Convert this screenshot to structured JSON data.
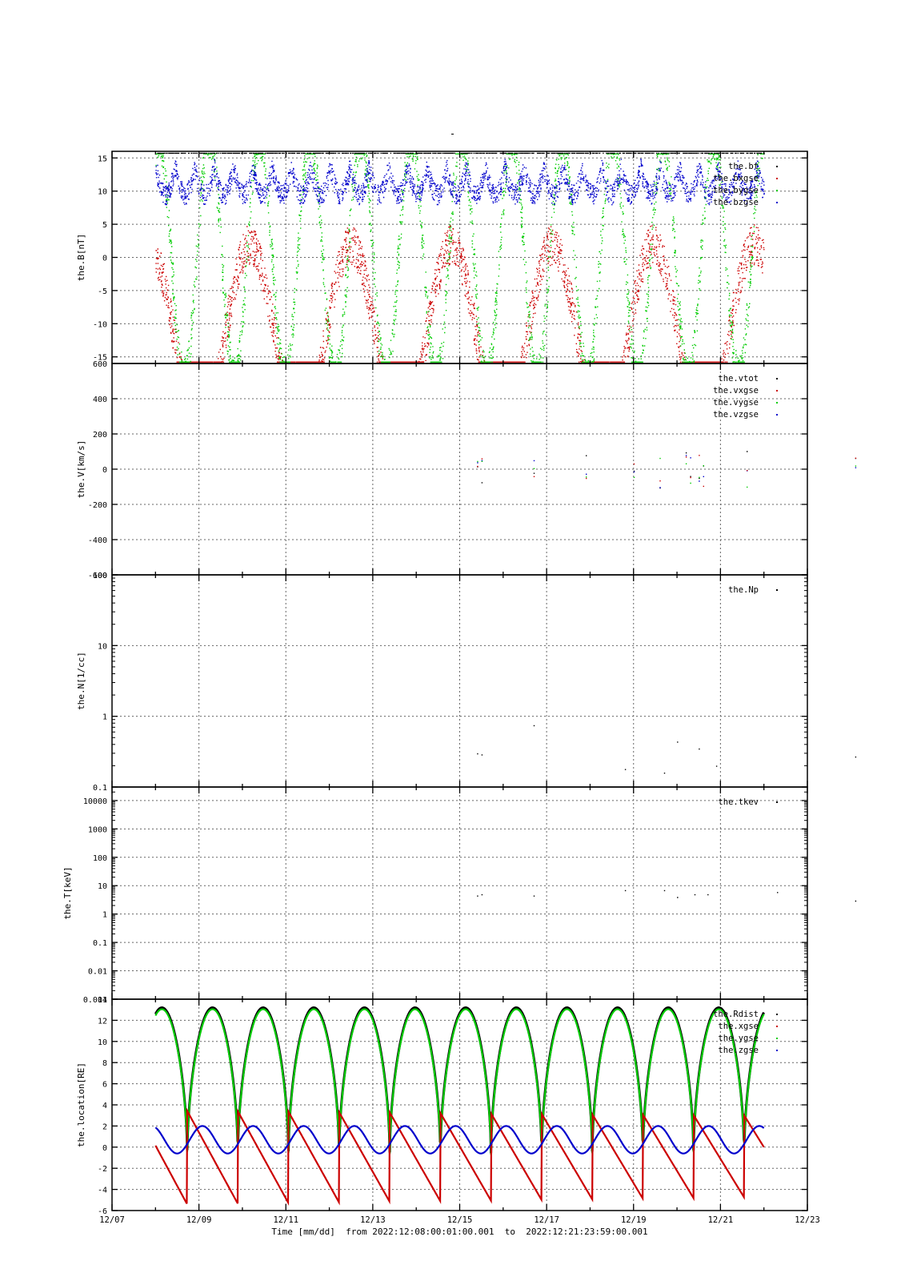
{
  "figure": {
    "title": "-",
    "time_caption": "Time [mm/dd]  from 2022:12:08:00:01:00.001  to  2022:12:21:23:59:00.001"
  },
  "chart_data": [
    {
      "type": "scatter",
      "ylabel": "the.B[nT]",
      "ylim": [
        -16,
        16
      ],
      "yticks": [
        15,
        10,
        5,
        0,
        -5,
        -10,
        -15
      ],
      "legend": {
        "placement": "top-right",
        "entries": [
          "the.bt",
          "the.bxgse",
          "the.bygse",
          "the.bzgse"
        ]
      },
      "series": [
        {
          "name": "the.bt",
          "color": "#000000"
        },
        {
          "name": "the.bxgse",
          "color": "#cc0000"
        },
        {
          "name": "the.bygse",
          "color": "#00cc00"
        },
        {
          "name": "the.bzgse",
          "color": "#0000cc"
        }
      ]
    },
    {
      "type": "scatter",
      "ylabel": "the.V[km/s]",
      "ylim": [
        -600,
        600
      ],
      "yticks": [
        600,
        400,
        200,
        0,
        -200,
        -400,
        -600
      ],
      "legend": {
        "placement": "top-right",
        "entries": [
          "the.vtot",
          "the.vxgse",
          "the.vygse",
          "the.vzgse"
        ]
      },
      "series": [
        {
          "name": "the.vtot",
          "color": "#000000"
        },
        {
          "name": "the.vxgse",
          "color": "#cc0000"
        },
        {
          "name": "the.vygse",
          "color": "#00cc00"
        },
        {
          "name": "the.vzgse",
          "color": "#0000cc"
        }
      ]
    },
    {
      "type": "scatter",
      "ylabel": "the.N[1/cc]",
      "log": true,
      "ylim": [
        0.1,
        100
      ],
      "yticks": [
        "100",
        "10",
        "1",
        "0.1"
      ],
      "legend": {
        "placement": "top-right",
        "entries": [
          "the.Np"
        ]
      },
      "series": [
        {
          "name": "the.Np",
          "color": "#000000"
        }
      ]
    },
    {
      "type": "scatter",
      "ylabel": "the.T[keV]",
      "log": true,
      "ylim": [
        0.001,
        30000
      ],
      "yticks": [
        "10000",
        "1000",
        "100",
        "10",
        "1",
        "0.1",
        "0.01",
        "0.001"
      ],
      "legend": {
        "placement": "top-right",
        "entries": [
          "the.tkev"
        ]
      },
      "series": [
        {
          "name": "the.tkev",
          "color": "#000000"
        }
      ]
    },
    {
      "type": "line",
      "ylabel": "the.location[RE]",
      "ylim": [
        -6,
        14
      ],
      "yticks": [
        14,
        12,
        10,
        8,
        6,
        4,
        2,
        0,
        -2,
        -4,
        -6
      ],
      "legend": {
        "placement": "top-right",
        "entries": [
          "the.Rdist",
          "the.xgse",
          "the.ygse",
          "the.zgse"
        ]
      },
      "series": [
        {
          "name": "the.Rdist",
          "color": "#000000"
        },
        {
          "name": "the.xgse",
          "color": "#cc0000"
        },
        {
          "name": "the.ygse",
          "color": "#00cc00"
        },
        {
          "name": "the.zgse",
          "color": "#0000cc"
        }
      ]
    }
  ],
  "x_axis": {
    "label": "Time [mm/dd]",
    "xlim": [
      "2022-12-07",
      "2022-12-23"
    ],
    "tick_labels": [
      "12/07",
      "12/09",
      "12/11",
      "12/13",
      "12/15",
      "12/17",
      "12/19",
      "12/21",
      "12/23"
    ],
    "grid": true,
    "data_start": "2022-12-08T00:01:00",
    "data_end": "2022-12-21T23:59:00"
  }
}
